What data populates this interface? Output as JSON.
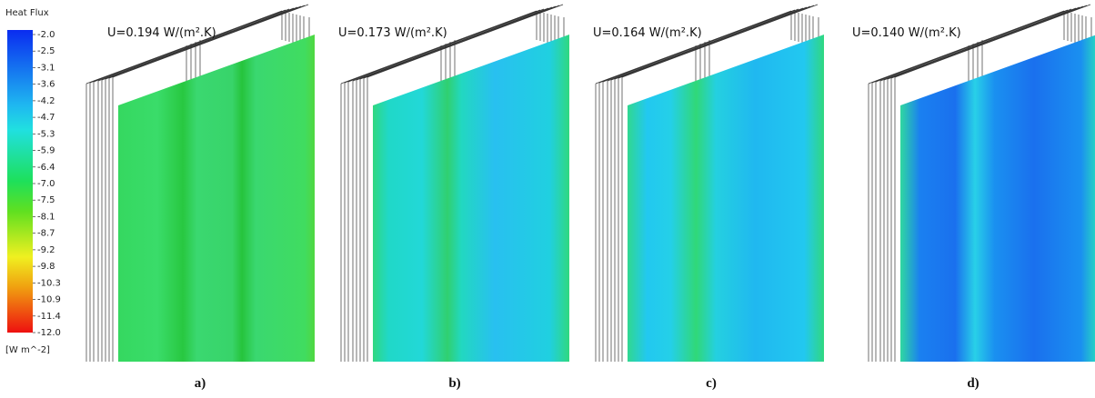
{
  "legend": {
    "title": "Heat Flux",
    "ticks": [
      "-2.0",
      "-2.5",
      "-3.1",
      "-3.6",
      "-4.2",
      "-4.7",
      "-5.3",
      "-5.9",
      "-6.4",
      "-7.0",
      "-7.5",
      "-8.1",
      "-8.7",
      "-9.2",
      "-9.8",
      "-10.3",
      "-10.9",
      "-11.4",
      "-12.0"
    ],
    "unit": "[W m^-2]"
  },
  "panels": [
    {
      "label": "U=0.194 W/(m².K)",
      "caption": "a)"
    },
    {
      "label": "U=0.173 W/(m².K)",
      "caption": "b)"
    },
    {
      "label": "U=0.164 W/(m².K)",
      "caption": "c)"
    },
    {
      "label": "U=0.140 W/(m².K)",
      "caption": "d)"
    }
  ]
}
